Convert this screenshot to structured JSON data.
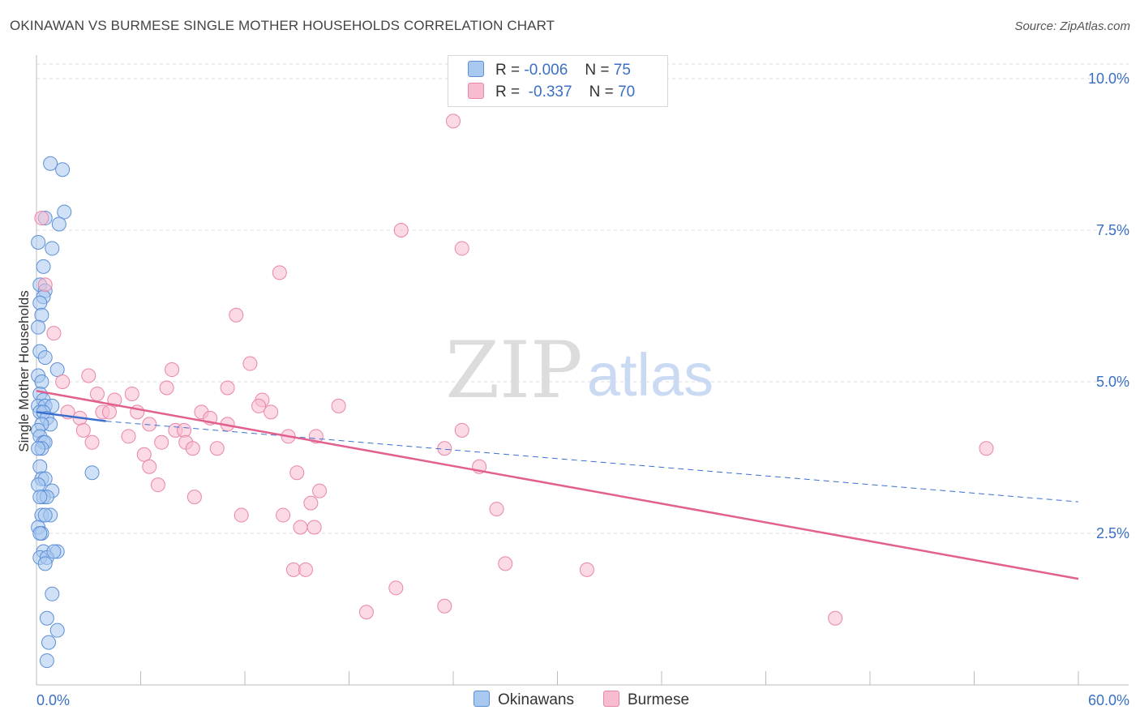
{
  "title": "OKINAWAN VS BURMESE SINGLE MOTHER HOUSEHOLDS CORRELATION CHART",
  "source": "Source: ZipAtlas.com",
  "legend": {
    "rows": [
      {
        "r_label": "R =",
        "r_value": "-0.006",
        "n_label": "N =",
        "n_value": "75"
      },
      {
        "r_label": "R =",
        "r_value": "-0.337",
        "n_label": "N =",
        "n_value": "70"
      }
    ]
  },
  "bottom_legend": {
    "series1": "Okinawans",
    "series2": "Burmese"
  },
  "watermark": {
    "part1": "ZIP",
    "part2": "atlas"
  },
  "colors": {
    "okinawan_fill": "#a9c8f0",
    "okinawan_stroke": "#5b8fd6",
    "okinawan_line": "#3a6fd0",
    "burmese_fill": "#f7bcd0",
    "burmese_stroke": "#e985a8",
    "burmese_line": "#e2608f",
    "axis_text": "#3a6fc4",
    "grid": "#dddddd"
  },
  "chart_data": {
    "type": "scatter",
    "title": "OKINAWAN VS BURMESE SINGLE MOTHER HOUSEHOLDS CORRELATION CHART",
    "ylabel": "Single Mother Households",
    "xlim": [
      0,
      60
    ],
    "ylim": [
      0,
      10.5
    ],
    "x_ticks": [
      "0.0%",
      "60.0%"
    ],
    "y_ticks": [
      {
        "value": 2.5,
        "label": "2.5%"
      },
      {
        "value": 5.0,
        "label": "5.0%"
      },
      {
        "value": 7.5,
        "label": "7.5%"
      },
      {
        "value": 10.0,
        "label": "10.0%"
      }
    ],
    "grid": true,
    "series": [
      {
        "name": "Okinawans",
        "r": -0.006,
        "n": 75,
        "trend_solid": [
          [
            0.0,
            4.5
          ],
          [
            4.0,
            4.35
          ]
        ],
        "trend_dashed": [
          [
            4.0,
            4.35
          ],
          [
            60.0,
            3.02
          ]
        ],
        "points": [
          [
            0.8,
            8.6
          ],
          [
            1.5,
            8.5
          ],
          [
            1.6,
            7.8
          ],
          [
            0.5,
            7.7
          ],
          [
            1.3,
            7.6
          ],
          [
            0.1,
            7.3
          ],
          [
            0.9,
            7.2
          ],
          [
            0.4,
            6.9
          ],
          [
            0.2,
            6.6
          ],
          [
            0.5,
            6.5
          ],
          [
            0.4,
            6.4
          ],
          [
            0.2,
            6.3
          ],
          [
            0.3,
            6.1
          ],
          [
            0.1,
            5.9
          ],
          [
            0.2,
            5.5
          ],
          [
            0.5,
            5.4
          ],
          [
            1.2,
            5.2
          ],
          [
            0.1,
            5.1
          ],
          [
            0.3,
            5.0
          ],
          [
            0.2,
            4.8
          ],
          [
            0.4,
            4.7
          ],
          [
            0.1,
            4.6
          ],
          [
            0.5,
            4.6
          ],
          [
            0.9,
            4.6
          ],
          [
            0.2,
            4.5
          ],
          [
            0.4,
            4.5
          ],
          [
            0.6,
            4.4
          ],
          [
            0.8,
            4.3
          ],
          [
            0.3,
            4.3
          ],
          [
            0.1,
            4.2
          ],
          [
            0.2,
            4.1
          ],
          [
            0.4,
            4.0
          ],
          [
            0.5,
            4.0
          ],
          [
            0.3,
            3.9
          ],
          [
            0.1,
            3.9
          ],
          [
            0.2,
            3.6
          ],
          [
            3.2,
            3.5
          ],
          [
            0.3,
            3.4
          ],
          [
            0.5,
            3.4
          ],
          [
            0.1,
            3.3
          ],
          [
            0.9,
            3.2
          ],
          [
            0.4,
            3.1
          ],
          [
            0.6,
            3.1
          ],
          [
            0.2,
            3.1
          ],
          [
            0.3,
            2.8
          ],
          [
            0.8,
            2.8
          ],
          [
            0.5,
            2.8
          ],
          [
            0.1,
            2.6
          ],
          [
            0.3,
            2.5
          ],
          [
            0.2,
            2.5
          ],
          [
            0.4,
            2.2
          ],
          [
            1.2,
            2.2
          ],
          [
            0.2,
            2.1
          ],
          [
            0.6,
            2.1
          ],
          [
            0.5,
            2.0
          ],
          [
            1.0,
            2.2
          ],
          [
            0.9,
            1.5
          ],
          [
            0.6,
            1.1
          ],
          [
            1.2,
            0.9
          ],
          [
            0.7,
            0.7
          ],
          [
            0.6,
            0.4
          ]
        ]
      },
      {
        "name": "Burmese",
        "r": -0.337,
        "n": 70,
        "trend": [
          [
            0.0,
            4.85
          ],
          [
            60.0,
            1.75
          ]
        ],
        "points": [
          [
            0.3,
            7.7
          ],
          [
            0.5,
            6.6
          ],
          [
            1.0,
            5.8
          ],
          [
            24.0,
            9.3
          ],
          [
            21.0,
            7.5
          ],
          [
            24.5,
            7.2
          ],
          [
            14.0,
            6.8
          ],
          [
            11.5,
            6.1
          ],
          [
            7.8,
            5.2
          ],
          [
            12.3,
            5.3
          ],
          [
            3.0,
            5.1
          ],
          [
            1.5,
            5.0
          ],
          [
            7.5,
            4.9
          ],
          [
            11.0,
            4.9
          ],
          [
            3.5,
            4.8
          ],
          [
            5.5,
            4.8
          ],
          [
            4.5,
            4.7
          ],
          [
            13.0,
            4.7
          ],
          [
            12.8,
            4.6
          ],
          [
            13.5,
            4.5
          ],
          [
            17.4,
            4.6
          ],
          [
            1.8,
            4.5
          ],
          [
            3.8,
            4.5
          ],
          [
            4.2,
            4.5
          ],
          [
            5.8,
            4.5
          ],
          [
            9.5,
            4.5
          ],
          [
            10.0,
            4.4
          ],
          [
            2.5,
            4.4
          ],
          [
            6.5,
            4.3
          ],
          [
            11.0,
            4.3
          ],
          [
            8.0,
            4.2
          ],
          [
            8.5,
            4.2
          ],
          [
            2.7,
            4.2
          ],
          [
            24.5,
            4.2
          ],
          [
            14.5,
            4.1
          ],
          [
            5.3,
            4.1
          ],
          [
            3.2,
            4.0
          ],
          [
            8.6,
            4.0
          ],
          [
            9.0,
            3.9
          ],
          [
            10.4,
            3.9
          ],
          [
            7.2,
            4.0
          ],
          [
            16.1,
            4.1
          ],
          [
            23.5,
            3.9
          ],
          [
            54.7,
            3.9
          ],
          [
            6.2,
            3.8
          ],
          [
            6.5,
            3.6
          ],
          [
            25.5,
            3.6
          ],
          [
            15.0,
            3.5
          ],
          [
            7.0,
            3.3
          ],
          [
            16.3,
            3.2
          ],
          [
            9.1,
            3.1
          ],
          [
            15.8,
            3.0
          ],
          [
            26.5,
            2.9
          ],
          [
            11.8,
            2.8
          ],
          [
            14.2,
            2.8
          ],
          [
            15.2,
            2.6
          ],
          [
            16.0,
            2.6
          ],
          [
            27.0,
            2.0
          ],
          [
            31.7,
            1.9
          ],
          [
            14.8,
            1.9
          ],
          [
            15.5,
            1.9
          ],
          [
            20.7,
            1.6
          ],
          [
            23.5,
            1.3
          ],
          [
            19.0,
            1.2
          ],
          [
            46.0,
            1.1
          ]
        ]
      }
    ]
  }
}
